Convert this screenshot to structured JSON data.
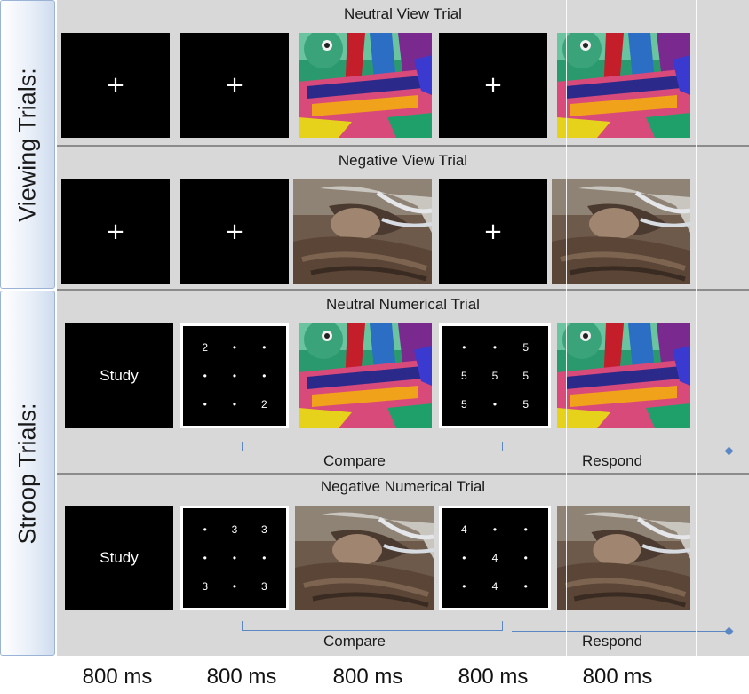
{
  "sections": {
    "viewing_label": "Viewing Trials:",
    "stroop_label": "Stroop Trials:"
  },
  "trials": {
    "neutral_view": "Neutral View Trial",
    "negative_view": "Negative View Trial",
    "neutral_numerical": "Neutral Numerical Trial",
    "negative_numerical": "Negative Numerical Trial"
  },
  "stimuli": {
    "fixation": "+",
    "study": "Study",
    "dot": "•",
    "neutral_num_study_grid": [
      "2",
      "•",
      "•",
      "•",
      "•",
      "•",
      "•",
      "•",
      "2"
    ],
    "neutral_num_compare_grid": [
      "•",
      "•",
      "5",
      "5",
      "5",
      "5",
      "5",
      "•",
      "5"
    ],
    "negative_num_study_grid": [
      "•",
      "3",
      "3",
      "•",
      "•",
      "•",
      "3",
      "•",
      "3"
    ],
    "negative_num_compare_grid": [
      "4",
      "•",
      "•",
      "•",
      "4",
      "•",
      "•",
      "4",
      "•"
    ]
  },
  "phases": {
    "compare": "Compare",
    "respond": "Respond"
  },
  "durations": [
    "800 ms",
    "800 ms",
    "800 ms",
    "800 ms",
    "800 ms"
  ],
  "colors": {
    "row_bg": "#d8d8d8",
    "accent_line": "#5b87c5",
    "side_panel_border": "#9cb3d8"
  }
}
